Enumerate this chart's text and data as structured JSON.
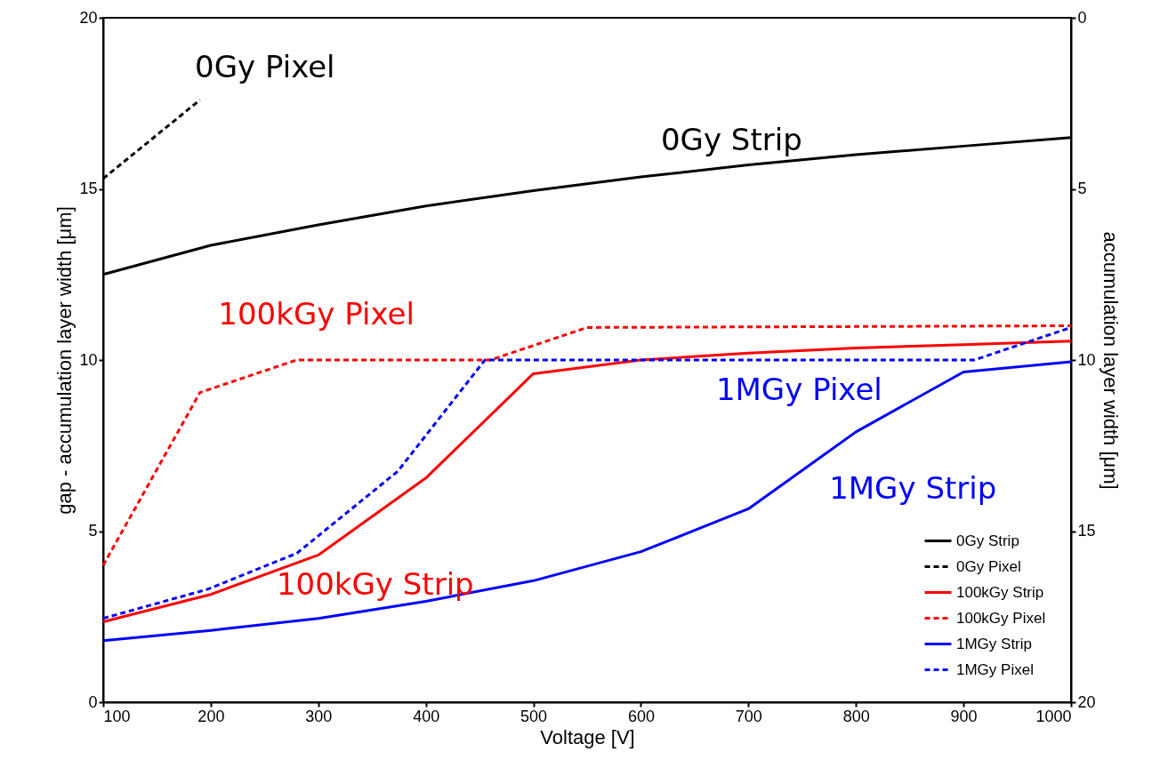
{
  "chart_data": {
    "type": "line",
    "xlabel": "Voltage [V]",
    "ylabel": "gap - accumulation layer width [μm]",
    "y2label": "accumulation layer width [μm]",
    "xlim": [
      100,
      1000
    ],
    "xticks": [
      100,
      200,
      300,
      400,
      500,
      600,
      700,
      800,
      900,
      1000
    ],
    "ylim": [
      0,
      20
    ],
    "yticks": [
      0,
      5,
      10,
      15,
      20
    ],
    "y2lim": [
      20,
      0
    ],
    "y2ticks": [
      0,
      5,
      10,
      15,
      20
    ],
    "grid": false,
    "legend": "bottom right",
    "marker": "none",
    "series": [
      {
        "name": "0Gy Strip",
        "color": "#000000",
        "line_style": "solid",
        "x": [
          100,
          200,
          300,
          400,
          500,
          600,
          700,
          800,
          900,
          1000
        ],
        "values": [
          12.5,
          13.35,
          13.95,
          14.5,
          14.95,
          15.35,
          15.7,
          16.0,
          16.25,
          16.5
        ]
      },
      {
        "name": "0Gy Pixel",
        "color": "#000000",
        "line_style": "dashed",
        "x": [
          100,
          190
        ],
        "values": [
          15.3,
          17.6
        ]
      },
      {
        "name": "100kGy Strip",
        "color": "#ff0000",
        "line_style": "solid",
        "x": [
          100,
          200,
          300,
          400,
          500,
          600,
          700,
          800,
          900,
          1000
        ],
        "values": [
          2.35,
          3.15,
          4.3,
          6.55,
          9.6,
          10.0,
          10.2,
          10.35,
          10.45,
          10.55
        ]
      },
      {
        "name": "100kGy Pixel",
        "color": "#ff0000",
        "line_style": "dashed",
        "x": [
          100,
          190,
          280,
          460,
          550,
          1000
        ],
        "values": [
          4.0,
          9.05,
          10.0,
          10.0,
          10.95,
          11.0
        ]
      },
      {
        "name": "1MGy Strip",
        "color": "#0000ff",
        "line_style": "solid",
        "x": [
          100,
          200,
          300,
          400,
          500,
          600,
          700,
          800,
          900,
          1000
        ],
        "values": [
          1.8,
          2.1,
          2.45,
          2.95,
          3.55,
          4.4,
          5.65,
          7.9,
          9.65,
          9.95
        ]
      },
      {
        "name": "1MGy Pixel",
        "color": "#0000ff",
        "line_style": "dashed",
        "x": [
          100,
          197,
          280,
          374,
          455,
          910,
          1000
        ],
        "values": [
          2.45,
          3.3,
          4.35,
          6.75,
          10.0,
          10.0,
          10.95
        ]
      }
    ],
    "annotations": [
      {
        "text": "0Gy Pixel",
        "x": 190,
        "y": 17.6
      },
      {
        "text": "0Gy Strip",
        "x": 700,
        "y": 15.7
      },
      {
        "text": "100kGy Pixel",
        "x": 280,
        "y": 10.0
      },
      {
        "text": "1MGy Pixel",
        "x": 700,
        "y": 10.0
      },
      {
        "text": "1MGy Strip",
        "x": 800,
        "y": 7.9
      },
      {
        "text": "100kGy Strip",
        "x": 300,
        "y": 4.3
      }
    ]
  }
}
